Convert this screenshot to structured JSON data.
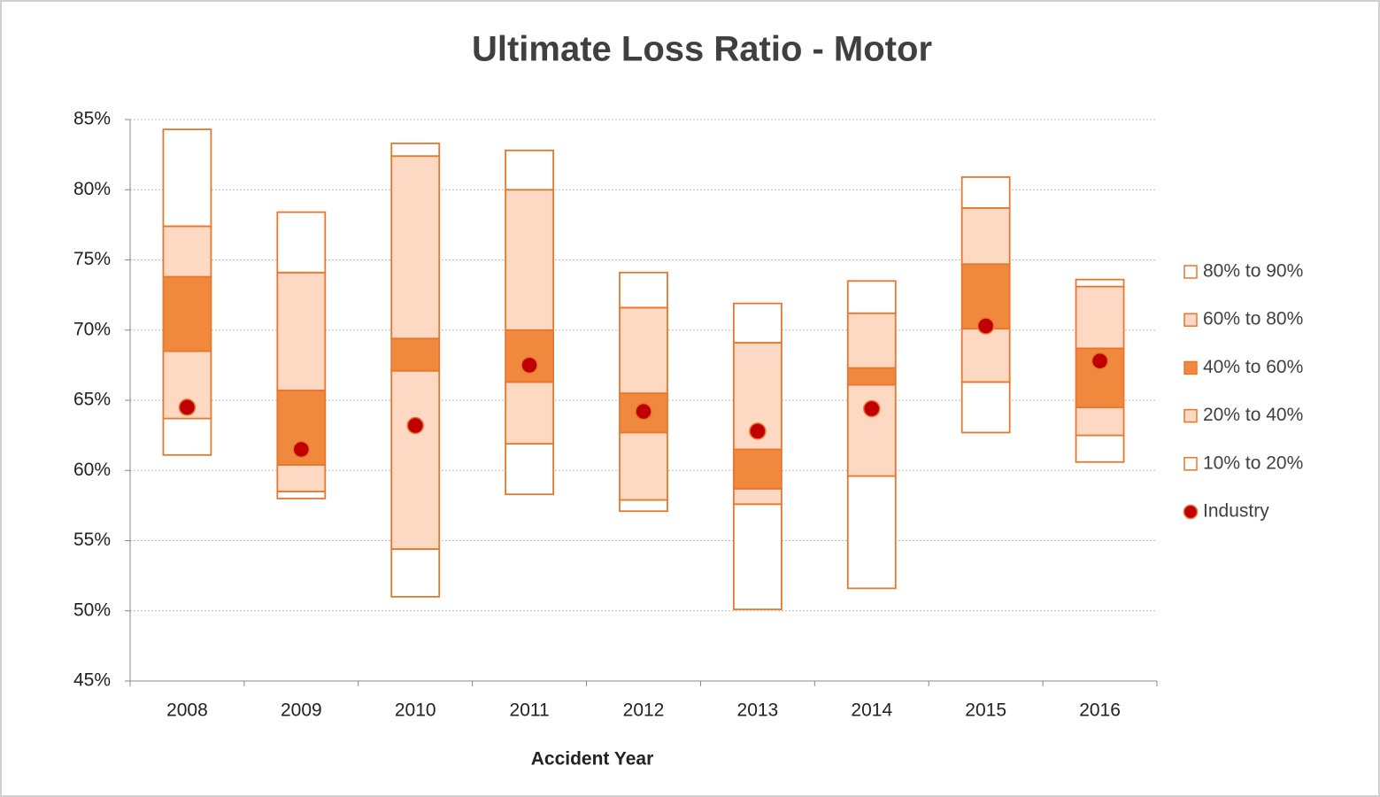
{
  "chart_data": {
    "type": "floating-bar",
    "title": "Ultimate Loss Ratio - Motor",
    "x_label": "Accident Year",
    "categories": [
      "2008",
      "2009",
      "2010",
      "2011",
      "2012",
      "2013",
      "2014",
      "2015",
      "2016"
    ],
    "ylim": [
      45,
      85
    ],
    "yticks": [
      {
        "value": 45,
        "label": "45%"
      },
      {
        "value": 50,
        "label": "50%"
      },
      {
        "value": 55,
        "label": "55%"
      },
      {
        "value": 60,
        "label": "60%"
      },
      {
        "value": 65,
        "label": "65%"
      },
      {
        "value": 70,
        "label": "70%"
      },
      {
        "value": 75,
        "label": "75%"
      },
      {
        "value": 80,
        "label": "80%"
      },
      {
        "value": 85,
        "label": "85%"
      }
    ],
    "grid": true,
    "legend": "right",
    "series": [
      {
        "name": "10% to 20%",
        "color": "#ffffff",
        "values": [
          [
            61.1,
            63.7
          ],
          [
            58.0,
            58.5
          ],
          [
            51.0,
            54.4
          ],
          [
            58.3,
            61.9
          ],
          [
            57.1,
            57.9
          ],
          [
            50.1,
            57.6
          ],
          [
            51.6,
            59.6
          ],
          [
            62.7,
            66.3
          ],
          [
            60.6,
            62.5
          ]
        ]
      },
      {
        "name": "20% to 40%",
        "color": "#fdd9c4",
        "values": [
          [
            63.7,
            68.5
          ],
          [
            58.5,
            60.4
          ],
          [
            54.4,
            67.1
          ],
          [
            61.9,
            66.3
          ],
          [
            57.9,
            62.7
          ],
          [
            57.6,
            58.7
          ],
          [
            59.6,
            66.1
          ],
          [
            66.3,
            70.1
          ],
          [
            62.5,
            64.5
          ]
        ]
      },
      {
        "name": "40% to 60%",
        "color": "#f0883e",
        "values": [
          [
            68.5,
            73.8
          ],
          [
            60.4,
            65.7
          ],
          [
            67.1,
            69.4
          ],
          [
            66.3,
            70.0
          ],
          [
            62.7,
            65.5
          ],
          [
            58.7,
            61.5
          ],
          [
            66.1,
            67.3
          ],
          [
            70.1,
            74.7
          ],
          [
            64.5,
            68.7
          ]
        ]
      },
      {
        "name": "60% to 80%",
        "color": "#fdd9c4",
        "values": [
          [
            73.8,
            77.4
          ],
          [
            65.7,
            74.1
          ],
          [
            69.4,
            82.4
          ],
          [
            70.0,
            80.0
          ],
          [
            65.5,
            71.6
          ],
          [
            61.5,
            69.1
          ],
          [
            67.3,
            71.2
          ],
          [
            74.7,
            78.7
          ],
          [
            68.7,
            73.1
          ]
        ]
      },
      {
        "name": "80% to 90%",
        "color": "#ffffff",
        "values": [
          [
            77.4,
            84.3
          ],
          [
            74.1,
            78.4
          ],
          [
            82.4,
            83.3
          ],
          [
            80.0,
            82.8
          ],
          [
            71.6,
            74.1
          ],
          [
            69.1,
            71.9
          ],
          [
            71.2,
            73.5
          ],
          [
            78.7,
            80.9
          ],
          [
            73.1,
            73.6
          ]
        ]
      },
      {
        "name": "Industry",
        "color": "#c00000",
        "values": [
          64.5,
          61.5,
          63.2,
          67.5,
          64.2,
          62.8,
          64.4,
          70.3,
          67.8
        ]
      }
    ],
    "outline_color": "#e8772e"
  }
}
